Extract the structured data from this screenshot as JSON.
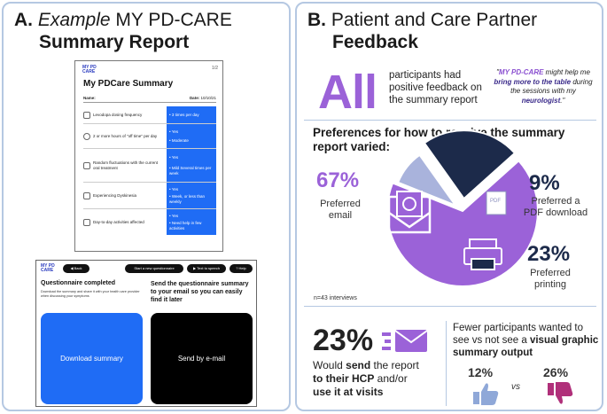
{
  "panel_a": {
    "title_prefix": "A. ",
    "title_italic": "Example",
    "title_rest": " MY PD-CARE",
    "title_line2": "Summary Report",
    "summary": {
      "logo_line1": "MY PD",
      "logo_line2": "CARE",
      "page": "1/2",
      "title": "My PDCare Summary",
      "name_label": "Name:",
      "date_label": "Date:",
      "date_value": "10/10/21",
      "rows": [
        {
          "label": "Levodopa dosing frequency",
          "values": [
            "3 times per day"
          ]
        },
        {
          "label": "2 or more hours of \"off time\" per day",
          "values": [
            "Yes",
            "Moderate"
          ]
        },
        {
          "label": "Random fluctuations with the current oral treatment",
          "values": [
            "Yes",
            "Mild Several times per week"
          ]
        },
        {
          "label": "Experiencing Dyskinesia",
          "values": [
            "Yes",
            "Week, or less than weekly"
          ]
        },
        {
          "label": "Day-to-day activities affected",
          "values": [
            "Yes",
            "Need help in few activities"
          ]
        }
      ]
    },
    "app": {
      "logo_line1": "MY PD",
      "logo_line2": "CARE",
      "back_label": "Back",
      "new_q_label": "Start a new questionnaire",
      "tts_label": "Text to speech",
      "help_label": "Help",
      "completed_heading": "Questionnaire completed",
      "completed_sub": "Download the summary and share it with your health care provider when discussing your symptoms",
      "send_heading": "Send the questionnaire summary to your email so you can easily find it later",
      "download_label": "Download summary",
      "email_label": "Send by e-mail"
    }
  },
  "panel_b": {
    "title_prefix": "B. ",
    "title_rest": "Patient and Care Partner",
    "title_line2": "Feedback",
    "all_word": "All",
    "all_text": "participants had positive feedback on the summary report",
    "quote_open": "\"",
    "quote_italic_bold": "MY PD-CARE",
    "quote_mid": " might help me ",
    "quote_bold_1": "bring more to the table",
    "quote_mid_2": " during the sessions with my ",
    "quote_bold_2": "neurologist",
    "quote_close": ".\"",
    "pref_heading": "Preferences for how to receive the summary report varied:",
    "n_note": "n=43 interviews",
    "email_pct": "67%",
    "email_label": "Preferred email",
    "pdf_pct": "9%",
    "pdf_label": "Preferred a PDF download",
    "pdf_icon_text": "PDF",
    "print_pct": "23%",
    "print_label": "Preferred printing",
    "send_pct": "23%",
    "send_text_1": "Would ",
    "send_text_b1": "send",
    "send_text_2": " the report ",
    "send_text_b2": "to their HCP",
    "send_text_3": " and/or ",
    "send_text_b3": "use it at visits",
    "fewer_text_1": "Fewer participants wanted to see vs not see a ",
    "fewer_text_b": "visual graphic summary output",
    "thumb_up_pct": "12%",
    "vs_label": "vs",
    "thumb_down_pct": "26%",
    "colors": {
      "purple": "#9b62d8",
      "light_purple": "#a9b3dc",
      "navy": "#1c2a4a",
      "blue": "#1f6cf5",
      "border": "#b5c8e2"
    }
  },
  "chart_data": {
    "type": "pie",
    "title": "Preferences for how to receive the summary report varied:",
    "categories": [
      "Preferred email",
      "Preferred a PDF download",
      "Preferred printing"
    ],
    "values": [
      67,
      9,
      23
    ],
    "note": "n=43 interviews"
  }
}
